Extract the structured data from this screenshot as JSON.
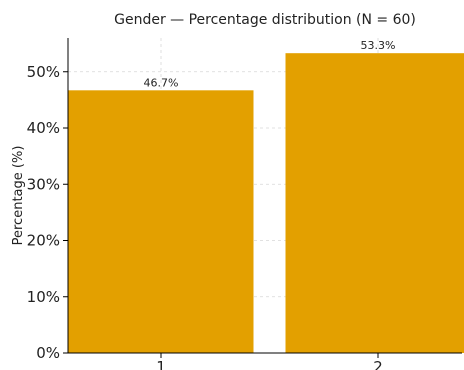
{
  "chart_data": {
    "type": "bar",
    "title": "Gender — Percentage distribution (N = 60)",
    "xlabel": "",
    "ylabel": "Percentage (%)",
    "categories": [
      "1",
      "2"
    ],
    "values": [
      46.7,
      53.3
    ],
    "data_labels": [
      "46.7%",
      "53.3%"
    ],
    "ylim": [
      0,
      56
    ],
    "yticks": [
      0,
      10,
      20,
      30,
      40,
      50
    ],
    "ytick_labels": [
      "0%",
      "10%",
      "20%",
      "30%",
      "40%",
      "50%"
    ],
    "grid": true,
    "bar_color": "#E3A000"
  }
}
